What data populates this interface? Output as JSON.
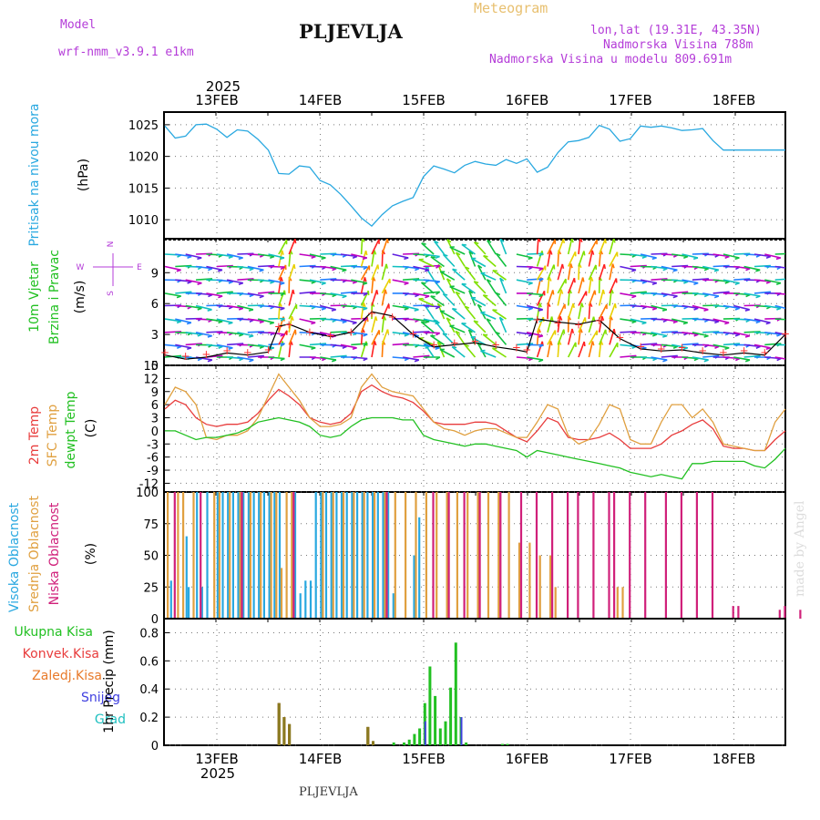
{
  "header": {
    "model_label": "Model",
    "model_name": "wrf-nmm_v3.9.1  e1km",
    "title": "PLJEVLJA",
    "meteogram": "Meteogram",
    "lonlat": "lon,lat (19.31E, 43.35N)",
    "altitude": "Nadmorska Visina 788m",
    "model_altitude": "Nadmorska Visina u modelu 809.691m",
    "footer": "PLJEVLJA",
    "watermark": "made by Angel"
  },
  "axis": {
    "year": "2025",
    "dates": [
      "13FEB",
      "14FEB",
      "15FEB",
      "16FEB",
      "17FEB",
      "18FEB"
    ]
  },
  "colors": {
    "pressure": "#29a8e0",
    "temp2m": "#e83c3c",
    "sfc": "#e0a040",
    "dewpt": "#22c022",
    "high_cloud": "#29a8e0",
    "mid_cloud": "#e0a040",
    "low_cloud": "#d0207a",
    "total_precip": "#22c022",
    "conv_precip": "#e83c3c",
    "frz_precip": "#e87a2a",
    "snow": "#4040e0",
    "grad": "#20c0c0"
  },
  "chart_data": [
    {
      "type": "line",
      "panel": "pressure",
      "ylabel_main": "Pritisak na nivou mora",
      "unit": "(hPa)",
      "ylim": [
        1007,
        1027
      ],
      "yticks": [
        1010,
        1015,
        1020,
        1025
      ],
      "x_days": [
        0,
        0.1,
        0.2,
        0.3,
        0.4,
        0.5,
        0.6,
        0.7,
        0.8,
        0.9,
        1.0,
        1.1,
        1.2,
        1.3,
        1.4,
        1.5,
        1.6,
        1.7,
        1.8,
        1.9,
        2.0,
        2.1,
        2.2,
        2.3,
        2.4,
        2.5,
        2.6,
        2.7,
        2.8,
        2.9,
        3.0,
        3.1,
        3.2,
        3.3,
        3.4,
        3.5,
        3.6,
        3.7,
        3.8,
        3.9,
        4.0,
        4.1,
        4.2,
        4.3,
        4.4,
        4.5,
        4.6,
        4.7,
        4.8,
        4.9,
        5.0,
        5.1,
        5.2,
        5.3,
        5.4,
        5.5,
        5.6,
        5.7,
        5.8,
        5.9,
        6.0
      ],
      "values": [
        1024.8,
        1022.9,
        1023.2,
        1025.0,
        1025.1,
        1024.3,
        1023.0,
        1024.2,
        1024.0,
        1022.7,
        1021.0,
        1017.3,
        1017.2,
        1018.5,
        1018.3,
        1016.2,
        1015.5,
        1014.0,
        1012.2,
        1010.3,
        1009.0,
        1010.8,
        1012.2,
        1012.9,
        1013.5,
        1016.8,
        1018.5,
        1018.0,
        1017.4,
        1018.6,
        1019.2,
        1018.8,
        1018.6,
        1019.5,
        1018.9,
        1019.6,
        1017.5,
        1018.3,
        1020.6,
        1022.3,
        1022.5,
        1023.0,
        1024.9,
        1024.3,
        1022.4,
        1022.8,
        1024.8,
        1024.6,
        1024.8,
        1024.5,
        1024.1,
        1024.2,
        1024.4,
        1022.5,
        1021.0,
        1021.0,
        1021.0,
        1021.0,
        1021.0,
        1021.0,
        1021.0
      ]
    },
    {
      "type": "line",
      "panel": "wind",
      "ylabel_main": "10m Vjetar",
      "ylabel_sub": "Brzina i Pravac",
      "unit": "(m/s)",
      "compass": [
        "N",
        "E",
        "S",
        "W"
      ],
      "ylim": [
        0,
        12.3
      ],
      "yticks": [
        0,
        3,
        6,
        9
      ],
      "x_days": [
        0,
        0.2,
        0.4,
        0.6,
        0.8,
        1.0,
        1.1,
        1.2,
        1.4,
        1.6,
        1.8,
        2.0,
        2.2,
        2.4,
        2.6,
        2.8,
        3.0,
        3.2,
        3.4,
        3.5,
        3.6,
        3.8,
        4.0,
        4.2,
        4.4,
        4.6,
        4.8,
        5.0,
        5.2,
        5.4,
        5.6,
        5.8,
        6.0
      ],
      "values": [
        1.0,
        0.6,
        0.8,
        1.2,
        1.0,
        1.3,
        3.8,
        4.0,
        3.2,
        2.8,
        3.2,
        5.2,
        4.8,
        3.0,
        1.8,
        2.0,
        2.2,
        1.8,
        1.5,
        1.3,
        4.5,
        4.2,
        4.0,
        4.4,
        2.6,
        1.6,
        1.4,
        1.5,
        1.2,
        1.0,
        1.2,
        1.0,
        3.0
      ]
    },
    {
      "type": "line",
      "panel": "temperature",
      "ylabels": [
        "2m Temp",
        "SFC Temp",
        "dewpt Temp"
      ],
      "unit": "(C)",
      "ylim": [
        -14,
        15
      ],
      "yticks": [
        -12,
        -9,
        -6,
        -3,
        0,
        3,
        6,
        9,
        12,
        15
      ],
      "x_days": [
        0,
        0.1,
        0.2,
        0.3,
        0.4,
        0.5,
        0.6,
        0.7,
        0.8,
        0.9,
        1.0,
        1.1,
        1.2,
        1.3,
        1.4,
        1.5,
        1.6,
        1.7,
        1.8,
        1.9,
        2.0,
        2.1,
        2.2,
        2.3,
        2.4,
        2.5,
        2.6,
        2.7,
        2.8,
        2.9,
        3.0,
        3.1,
        3.2,
        3.3,
        3.4,
        3.5,
        3.6,
        3.7,
        3.8,
        3.9,
        4.0,
        4.1,
        4.2,
        4.3,
        4.4,
        4.5,
        4.6,
        4.7,
        4.8,
        4.9,
        5.0,
        5.1,
        5.2,
        5.3,
        5.4,
        5.5,
        5.6,
        5.7,
        5.8,
        5.9,
        6.0
      ],
      "series": [
        {
          "name": "2m Temp",
          "values": [
            5,
            7,
            6,
            3,
            1.5,
            1,
            1.5,
            1.5,
            2,
            4,
            7,
            9.5,
            8,
            6,
            3,
            2,
            1.5,
            2,
            4,
            9,
            10.5,
            9,
            8,
            7.5,
            6.5,
            4.5,
            2,
            1.5,
            1.5,
            1.5,
            2,
            2,
            1.5,
            0,
            -1.5,
            -2.5,
            0,
            3,
            2,
            -1.5,
            -2,
            -2,
            -1.5,
            -0.5,
            -2,
            -4,
            -4,
            -4,
            -3,
            -1,
            0,
            1.5,
            2.5,
            0.5,
            -3.5,
            -4,
            -4,
            -4.5,
            -4.5,
            -2,
            0
          ]
        },
        {
          "name": "SFC Temp",
          "values": [
            6,
            10,
            9,
            6,
            -1.5,
            -2,
            -1,
            -1,
            0,
            3,
            8,
            13,
            10,
            7,
            3,
            1,
            1,
            1.5,
            3,
            10,
            13,
            10,
            9,
            8.5,
            8,
            5,
            2,
            0.5,
            0,
            -1,
            0,
            0.5,
            0.5,
            -0.5,
            -1.5,
            -1.5,
            2,
            6,
            5,
            -1,
            -3,
            -2,
            1.5,
            6,
            5,
            -2,
            -3,
            -3,
            2,
            6,
            6,
            3,
            5,
            2,
            -3,
            -3.5,
            -4,
            -4.5,
            -4.5,
            2,
            5
          ]
        },
        {
          "name": "dewpt Temp",
          "values": [
            0,
            0,
            -1,
            -2,
            -1.5,
            -1.5,
            -1,
            -0.5,
            0.5,
            2,
            2.5,
            3,
            2.5,
            2,
            1,
            -1,
            -1.5,
            -1,
            1,
            2.5,
            3,
            3,
            3,
            2.5,
            2.5,
            -1,
            -2,
            -2.5,
            -3,
            -3.5,
            -3,
            -3,
            -3.5,
            -4,
            -4.5,
            -6,
            -4.5,
            -5,
            -5.5,
            -6,
            -6.5,
            -7,
            -7.5,
            -8,
            -8.5,
            -9.5,
            -10,
            -10.5,
            -10,
            -10.5,
            -11,
            -7.5,
            -7.5,
            -7,
            -7,
            -7,
            -7,
            -8,
            -8.5,
            -6.5,
            -4
          ]
        }
      ]
    },
    {
      "type": "bar",
      "panel": "cloud",
      "ylabels": [
        "Visoka Oblacnost",
        "Srednja Oblacnost",
        "Niska Oblacnost"
      ],
      "unit": "(%)",
      "ylim": [
        0,
        100
      ],
      "yticks": [
        0,
        25,
        50,
        75,
        100
      ],
      "high_cloud": [
        [
          0.05,
          30
        ],
        [
          0.2,
          65
        ],
        [
          0.22,
          25
        ],
        [
          0.3,
          100
        ],
        [
          0.35,
          25
        ],
        [
          0.4,
          100
        ],
        [
          0.5,
          100
        ],
        [
          0.55,
          100
        ],
        [
          0.6,
          100
        ],
        [
          0.65,
          100
        ],
        [
          0.7,
          100
        ],
        [
          0.75,
          100
        ],
        [
          0.8,
          100
        ],
        [
          0.85,
          100
        ],
        [
          0.9,
          100
        ],
        [
          0.95,
          100
        ],
        [
          1.0,
          100
        ],
        [
          1.05,
          100
        ],
        [
          1.1,
          100
        ],
        [
          1.25,
          100
        ],
        [
          1.3,
          20
        ],
        [
          1.35,
          30
        ],
        [
          1.4,
          30
        ],
        [
          1.45,
          100
        ],
        [
          1.5,
          100
        ],
        [
          1.55,
          100
        ],
        [
          1.6,
          100
        ],
        [
          1.65,
          100
        ],
        [
          1.7,
          100
        ],
        [
          1.75,
          100
        ],
        [
          1.8,
          100
        ],
        [
          1.85,
          100
        ],
        [
          1.9,
          100
        ],
        [
          1.95,
          100
        ],
        [
          2.0,
          100
        ],
        [
          2.05,
          100
        ],
        [
          2.1,
          100
        ],
        [
          2.15,
          100
        ],
        [
          2.2,
          20
        ],
        [
          2.4,
          50
        ],
        [
          2.45,
          80
        ]
      ],
      "mid_cloud": [
        [
          0.0,
          100
        ],
        [
          0.1,
          100
        ],
        [
          0.15,
          100
        ],
        [
          0.25,
          100
        ],
        [
          0.45,
          100
        ],
        [
          0.5,
          100
        ],
        [
          0.6,
          100
        ],
        [
          0.7,
          100
        ],
        [
          0.8,
          100
        ],
        [
          0.9,
          100
        ],
        [
          1.0,
          100
        ],
        [
          1.05,
          100
        ],
        [
          1.1,
          40
        ],
        [
          1.15,
          100
        ],
        [
          1.2,
          100
        ],
        [
          1.5,
          100
        ],
        [
          1.6,
          100
        ],
        [
          1.7,
          100
        ],
        [
          1.8,
          100
        ],
        [
          1.9,
          100
        ],
        [
          2.0,
          100
        ],
        [
          2.1,
          100
        ],
        [
          2.2,
          100
        ],
        [
          2.3,
          100
        ],
        [
          2.4,
          100
        ],
        [
          2.5,
          100
        ],
        [
          2.6,
          100
        ],
        [
          2.7,
          100
        ],
        [
          2.8,
          100
        ],
        [
          2.9,
          100
        ],
        [
          3.0,
          100
        ],
        [
          3.1,
          100
        ],
        [
          3.2,
          100
        ],
        [
          3.3,
          100
        ],
        [
          3.4,
          60
        ],
        [
          3.5,
          60
        ],
        [
          3.6,
          50
        ],
        [
          3.7,
          50
        ],
        [
          3.75,
          25
        ],
        [
          4.35,
          25
        ],
        [
          4.4,
          25
        ]
      ],
      "low_cloud": [
        [
          0.05,
          100
        ],
        [
          0.3,
          100
        ],
        [
          0.7,
          100
        ],
        [
          1.2,
          100
        ],
        [
          2.1,
          100
        ],
        [
          2.55,
          100
        ],
        [
          2.7,
          100
        ],
        [
          2.85,
          100
        ],
        [
          3.0,
          100
        ],
        [
          3.2,
          100
        ],
        [
          3.4,
          100
        ],
        [
          3.55,
          100
        ],
        [
          3.7,
          100
        ],
        [
          3.85,
          100
        ],
        [
          3.95,
          100
        ],
        [
          4.1,
          100
        ],
        [
          4.25,
          100
        ],
        [
          4.3,
          100
        ],
        [
          4.45,
          100
        ],
        [
          4.6,
          100
        ],
        [
          4.8,
          100
        ],
        [
          4.95,
          100
        ],
        [
          5.1,
          100
        ],
        [
          5.25,
          100
        ],
        [
          5.45,
          10
        ],
        [
          5.5,
          10
        ],
        [
          5.9,
          7
        ],
        [
          5.95,
          10
        ],
        [
          6.1,
          7
        ]
      ]
    },
    {
      "type": "bar",
      "panel": "precip",
      "ylabel": "1hr Precip (mm)",
      "legend": [
        "Ukupna Kisa",
        "Konvek.Kisa",
        "Zaledj.Kisa",
        "Snijeg",
        "Grad"
      ],
      "ylim": [
        0,
        0.9
      ],
      "yticks": [
        0,
        0.2,
        0.4,
        0.6,
        0.8
      ],
      "total": [
        [
          1.09,
          0.3
        ],
        [
          1.14,
          0.2
        ],
        [
          1.19,
          0.15
        ],
        [
          1.95,
          0.13
        ],
        [
          2.0,
          0.03
        ],
        [
          2.2,
          0.02
        ],
        [
          2.3,
          0.02
        ],
        [
          2.35,
          0.04
        ],
        [
          2.4,
          0.08
        ],
        [
          2.45,
          0.12
        ],
        [
          2.5,
          0.3
        ],
        [
          2.55,
          0.56
        ],
        [
          2.6,
          0.35
        ],
        [
          2.65,
          0.12
        ],
        [
          2.7,
          0.17
        ],
        [
          2.75,
          0.41
        ],
        [
          2.8,
          0.73
        ],
        [
          2.85,
          0.2
        ],
        [
          2.9,
          0.02
        ],
        [
          3.25,
          0.01
        ],
        [
          3.3,
          0.01
        ]
      ],
      "conv": [
        [
          1.09,
          0.3
        ],
        [
          1.14,
          0.2
        ],
        [
          1.19,
          0.15
        ],
        [
          1.95,
          0.13
        ],
        [
          2.0,
          0.03
        ]
      ],
      "snow": [
        [
          2.5,
          0.17
        ],
        [
          2.85,
          0.2
        ]
      ]
    }
  ]
}
